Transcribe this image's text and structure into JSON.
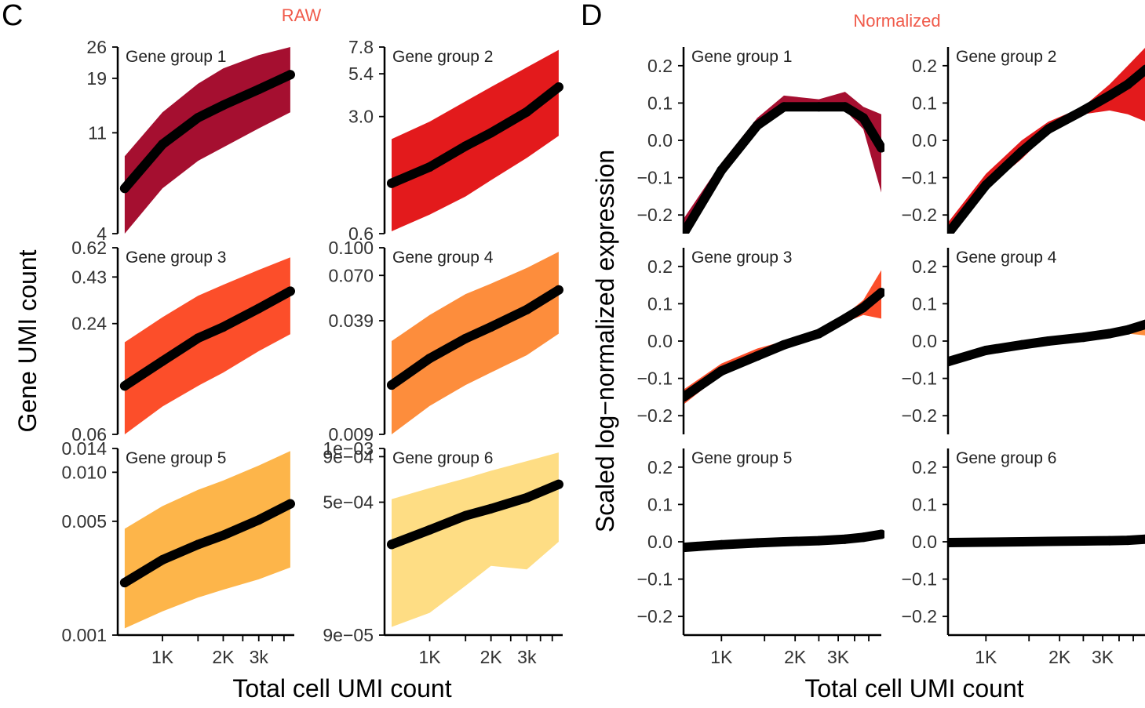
{
  "panels": {
    "C": {
      "letter": "C",
      "title": "RAW",
      "title_color": "#f05a4a"
    },
    "D": {
      "letter": "D",
      "title": "Normalized",
      "title_color": "#f05a4a"
    }
  },
  "labels": {
    "raw_ylabel": "Gene UMI count",
    "norm_ylabel": "Scaled log−normalized expression",
    "raw_xlabel": "Total cell UMI count",
    "norm_xlabel": "Total cell UMI count"
  },
  "colors": {
    "group1": "#a50f30",
    "group2": "#e31a1c",
    "group3": "#fc4e2a",
    "group4": "#fd8d3c",
    "group5": "#fdb54a",
    "group6": "#fedd84",
    "trend": "#000000"
  },
  "chart_data": [
    {
      "panel": "C",
      "type": "area",
      "title": "RAW",
      "xlabel": "Total cell UMI count",
      "ylabel": "Gene UMI count",
      "x_scale": "log",
      "x_range": [
        600,
        4500
      ],
      "x_ticks": [
        {
          "value": 1000,
          "label": "1K"
        },
        {
          "value": 2000,
          "label": "2K"
        },
        {
          "value": 3000,
          "label": "3k"
        }
      ],
      "x_minor_ticks": [
        1500,
        2500,
        3500,
        4000
      ],
      "y_scale": "log",
      "facets": [
        {
          "label": "Gene group 1",
          "color_key": "group1",
          "ylim": [
            4,
            26
          ],
          "y_ticks": [
            {
              "value": 4,
              "label": "4"
            },
            {
              "value": 11,
              "label": "11"
            },
            {
              "value": 19,
              "label": "19"
            },
            {
              "value": 26,
              "label": "26"
            }
          ],
          "x": [
            650,
            1000,
            1500,
            2000,
            3000,
            4300
          ],
          "mean": [
            6.3,
            9.8,
            12.8,
            14.5,
            17,
            19.7
          ],
          "lower": [
            4,
            6.3,
            8.3,
            9.5,
            11.5,
            13.5
          ],
          "upper": [
            8.7,
            13.5,
            18,
            21,
            24,
            26
          ]
        },
        {
          "label": "Gene group 2",
          "color_key": "group2",
          "ylim": [
            0.6,
            7.8
          ],
          "y_ticks": [
            {
              "value": 0.6,
              "label": "0.6"
            },
            {
              "value": 3.0,
              "label": "3.0"
            },
            {
              "value": 5.4,
              "label": "5.4"
            },
            {
              "value": 7.8,
              "label": "7.8"
            }
          ],
          "x": [
            650,
            1000,
            1500,
            2000,
            3000,
            4300
          ],
          "mean": [
            1.2,
            1.5,
            2.0,
            2.4,
            3.2,
            4.5
          ],
          "lower": [
            0.62,
            0.78,
            1.0,
            1.25,
            1.7,
            2.3
          ],
          "upper": [
            2.2,
            2.8,
            3.7,
            4.5,
            5.9,
            7.5
          ]
        },
        {
          "label": "Gene group 3",
          "color_key": "group3",
          "ylim": [
            0.06,
            0.62
          ],
          "y_ticks": [
            {
              "value": 0.06,
              "label": "0.06"
            },
            {
              "value": 0.24,
              "label": "0.24"
            },
            {
              "value": 0.43,
              "label": "0.43"
            },
            {
              "value": 0.62,
              "label": "0.62"
            }
          ],
          "x": [
            650,
            1000,
            1500,
            2000,
            3000,
            4300
          ],
          "mean": [
            0.11,
            0.15,
            0.2,
            0.23,
            0.29,
            0.36
          ],
          "lower": [
            0.06,
            0.085,
            0.11,
            0.13,
            0.17,
            0.21
          ],
          "upper": [
            0.19,
            0.26,
            0.34,
            0.39,
            0.47,
            0.55
          ]
        },
        {
          "label": "Gene group 4",
          "color_key": "group4",
          "ylim": [
            0.009,
            0.1
          ],
          "y_ticks": [
            {
              "value": 0.009,
              "label": "0.009"
            },
            {
              "value": 0.039,
              "label": "0.039"
            },
            {
              "value": 0.07,
              "label": "0.070"
            },
            {
              "value": 0.1,
              "label": "0.100"
            }
          ],
          "x": [
            650,
            1000,
            1500,
            2000,
            3000,
            4300
          ],
          "mean": [
            0.017,
            0.024,
            0.031,
            0.036,
            0.045,
            0.058
          ],
          "lower": [
            0.009,
            0.013,
            0.017,
            0.02,
            0.025,
            0.033
          ],
          "upper": [
            0.03,
            0.042,
            0.055,
            0.063,
            0.077,
            0.095
          ]
        },
        {
          "label": "Gene group 5",
          "color_key": "group5",
          "ylim": [
            0.001,
            0.014
          ],
          "y_ticks": [
            {
              "value": 0.001,
              "label": "0.001"
            },
            {
              "value": 0.005,
              "label": "0.005"
            },
            {
              "value": 0.01,
              "label": "0.010"
            },
            {
              "value": 0.014,
              "label": "0.014"
            }
          ],
          "x": [
            650,
            1000,
            1500,
            2000,
            3000,
            4300
          ],
          "mean": [
            0.0021,
            0.0029,
            0.0036,
            0.0041,
            0.0051,
            0.0064
          ],
          "lower": [
            0.0011,
            0.0014,
            0.0017,
            0.0019,
            0.0022,
            0.0026
          ],
          "upper": [
            0.0045,
            0.0062,
            0.0078,
            0.0089,
            0.011,
            0.0135
          ]
        },
        {
          "label": "Gene group 6",
          "color_key": "group6",
          "ylim": [
            9e-05,
            0.001
          ],
          "y_ticks": [
            {
              "value": 9e-05,
              "label": "9e−05"
            },
            {
              "value": 0.0005,
              "label": "5e−04"
            },
            {
              "value": 0.0009,
              "label": "9e−04"
            },
            {
              "value": 0.001,
              "label": "1e−03"
            }
          ],
          "x": [
            650,
            1000,
            1500,
            2000,
            3000,
            4300
          ],
          "mean": [
            0.00029,
            0.00035,
            0.00042,
            0.00046,
            0.00053,
            0.00063
          ],
          "lower": [
            0.0001,
            0.00012,
            0.00017,
            0.00022,
            0.00021,
            0.0003
          ],
          "upper": [
            0.00052,
            0.0006,
            0.00068,
            0.00075,
            0.00085,
            0.00095
          ]
        }
      ]
    },
    {
      "panel": "D",
      "type": "area",
      "title": "Normalized",
      "xlabel": "Total cell UMI count",
      "ylabel": "Scaled log−normalized expression",
      "x_scale": "log",
      "x_range": [
        700,
        4500
      ],
      "x_ticks": [
        {
          "value": 1000,
          "label": "1K"
        },
        {
          "value": 2000,
          "label": "2K"
        },
        {
          "value": 3000,
          "label": "3K"
        }
      ],
      "x_minor_ticks": [
        1500,
        2500,
        3500,
        4000
      ],
      "ylim": [
        -0.25,
        0.25
      ],
      "y_ticks": [
        {
          "value": -0.2,
          "label": "−0.2"
        },
        {
          "value": -0.1,
          "label": "−0.1"
        },
        {
          "value": 0.0,
          "label": "0.0"
        },
        {
          "value": 0.1,
          "label": "0.1"
        },
        {
          "value": 0.2,
          "label": "0.2"
        }
      ],
      "facets": [
        {
          "label": "Gene group 1",
          "color_key": "group1",
          "x": [
            700,
            1000,
            1400,
            1800,
            2500,
            3200,
            3800,
            4500
          ],
          "mean": [
            -0.25,
            -0.08,
            0.04,
            0.09,
            0.09,
            0.09,
            0.06,
            -0.02
          ],
          "lower": [
            -0.25,
            -0.09,
            0.03,
            0.08,
            0.08,
            0.08,
            0.03,
            -0.14
          ],
          "upper": [
            -0.21,
            -0.06,
            0.06,
            0.12,
            0.11,
            0.13,
            0.09,
            0.07
          ]
        },
        {
          "label": "Gene group 2",
          "color_key": "group2",
          "x": [
            700,
            1000,
            1400,
            1800,
            2500,
            3200,
            3800,
            4500
          ],
          "mean": [
            -0.25,
            -0.12,
            -0.03,
            0.03,
            0.08,
            0.12,
            0.15,
            0.19
          ],
          "lower": [
            -0.25,
            -0.13,
            -0.05,
            0.02,
            0.07,
            0.08,
            0.07,
            0.05
          ],
          "upper": [
            -0.22,
            -0.09,
            0.0,
            0.05,
            0.09,
            0.15,
            0.2,
            0.25
          ]
        },
        {
          "label": "Gene group 3",
          "color_key": "group3",
          "x": [
            700,
            1000,
            1400,
            1800,
            2500,
            3200,
            3800,
            4500
          ],
          "mean": [
            -0.15,
            -0.08,
            -0.04,
            -0.01,
            0.02,
            0.06,
            0.09,
            0.13
          ],
          "lower": [
            -0.17,
            -0.09,
            -0.05,
            -0.02,
            0.01,
            0.05,
            0.07,
            0.06
          ],
          "upper": [
            -0.13,
            -0.06,
            -0.02,
            0.0,
            0.03,
            0.07,
            0.11,
            0.19
          ]
        },
        {
          "label": "Gene group 4",
          "color_key": "group4",
          "x": [
            700,
            1000,
            1400,
            1800,
            2500,
            3200,
            3800,
            4500
          ],
          "mean": [
            -0.055,
            -0.025,
            -0.01,
            0.0,
            0.01,
            0.02,
            0.03,
            0.045
          ],
          "lower": [
            -0.065,
            -0.03,
            -0.015,
            -0.005,
            0.005,
            0.015,
            0.02,
            0.015
          ],
          "upper": [
            -0.045,
            -0.02,
            -0.005,
            0.005,
            0.015,
            0.025,
            0.04,
            0.05
          ]
        },
        {
          "label": "Gene group 5",
          "color_key": "group5",
          "x": [
            700,
            1000,
            1400,
            1800,
            2500,
            3200,
            3800,
            4500
          ],
          "mean": [
            -0.015,
            -0.008,
            -0.003,
            0.0,
            0.003,
            0.007,
            0.012,
            0.02
          ],
          "lower": [
            -0.018,
            -0.01,
            -0.005,
            -0.002,
            0.001,
            0.005,
            0.009,
            0.012
          ],
          "upper": [
            -0.012,
            -0.006,
            -0.001,
            0.002,
            0.005,
            0.009,
            0.015,
            0.024
          ]
        },
        {
          "label": "Gene group 6",
          "color_key": "group6",
          "x": [
            700,
            1000,
            1400,
            1800,
            2500,
            3200,
            3800,
            4500
          ],
          "mean": [
            -0.002,
            -0.001,
            0.0,
            0.001,
            0.002,
            0.003,
            0.004,
            0.007
          ],
          "lower": [
            -0.004,
            -0.003,
            -0.002,
            -0.001,
            0.0,
            0.001,
            0.002,
            0.004
          ],
          "upper": [
            0.0,
            0.001,
            0.002,
            0.003,
            0.004,
            0.005,
            0.006,
            0.01
          ]
        }
      ]
    }
  ]
}
